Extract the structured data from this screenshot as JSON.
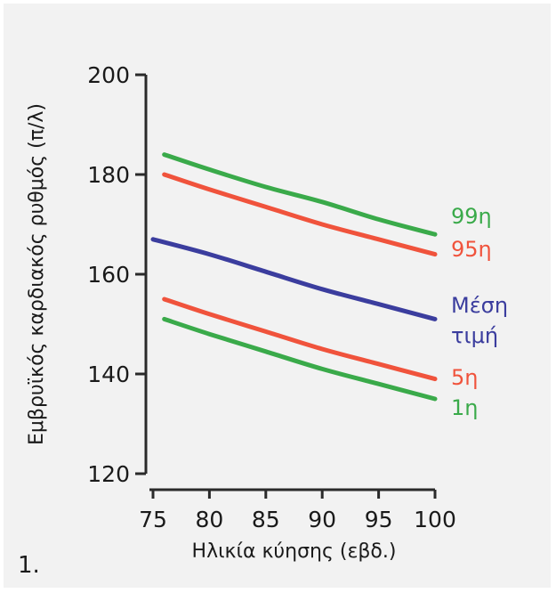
{
  "figure_number": "1.",
  "chart_data": {
    "type": "line",
    "xlabel": "Ηλικία κύησης (εβδ.)",
    "ylabel": "Εμβρυϊκός καρδιακός ρυθμός (π/λ)",
    "xlim": [
      75,
      100
    ],
    "ylim": [
      120,
      200
    ],
    "x_ticks": [
      "75",
      "80",
      "85",
      "90",
      "95",
      "100"
    ],
    "y_ticks": [
      "120",
      "140",
      "160",
      "180",
      "200"
    ],
    "grid": false,
    "legend": "none",
    "series": [
      {
        "name": "99η",
        "label_lines": [
          "99η"
        ],
        "color": "#3aaa4a",
        "x": [
          76,
          80,
          85,
          90,
          95,
          100
        ],
        "y": [
          184,
          181,
          177.5,
          174.5,
          171,
          168
        ]
      },
      {
        "name": "95η",
        "label_lines": [
          "95η"
        ],
        "color": "#f0533c",
        "x": [
          76,
          80,
          85,
          90,
          95,
          100
        ],
        "y": [
          180,
          177,
          173.5,
          170,
          167,
          164
        ]
      },
      {
        "name": "Μέση τιμή",
        "label_lines": [
          "Μέση",
          "τιμή"
        ],
        "color": "#3b3d9e",
        "x": [
          75,
          80,
          85,
          90,
          95,
          100
        ],
        "y": [
          167,
          164,
          160.5,
          157,
          154,
          151
        ]
      },
      {
        "name": "5η",
        "label_lines": [
          "5η"
        ],
        "color": "#f0533c",
        "x": [
          76,
          80,
          85,
          90,
          95,
          100
        ],
        "y": [
          155,
          152,
          148.5,
          145,
          142,
          139
        ]
      },
      {
        "name": "1η",
        "label_lines": [
          "1η"
        ],
        "color": "#3aaa4a",
        "x": [
          76,
          80,
          85,
          90,
          95,
          100
        ],
        "y": [
          151,
          148,
          144.5,
          141,
          138,
          135
        ]
      }
    ]
  }
}
